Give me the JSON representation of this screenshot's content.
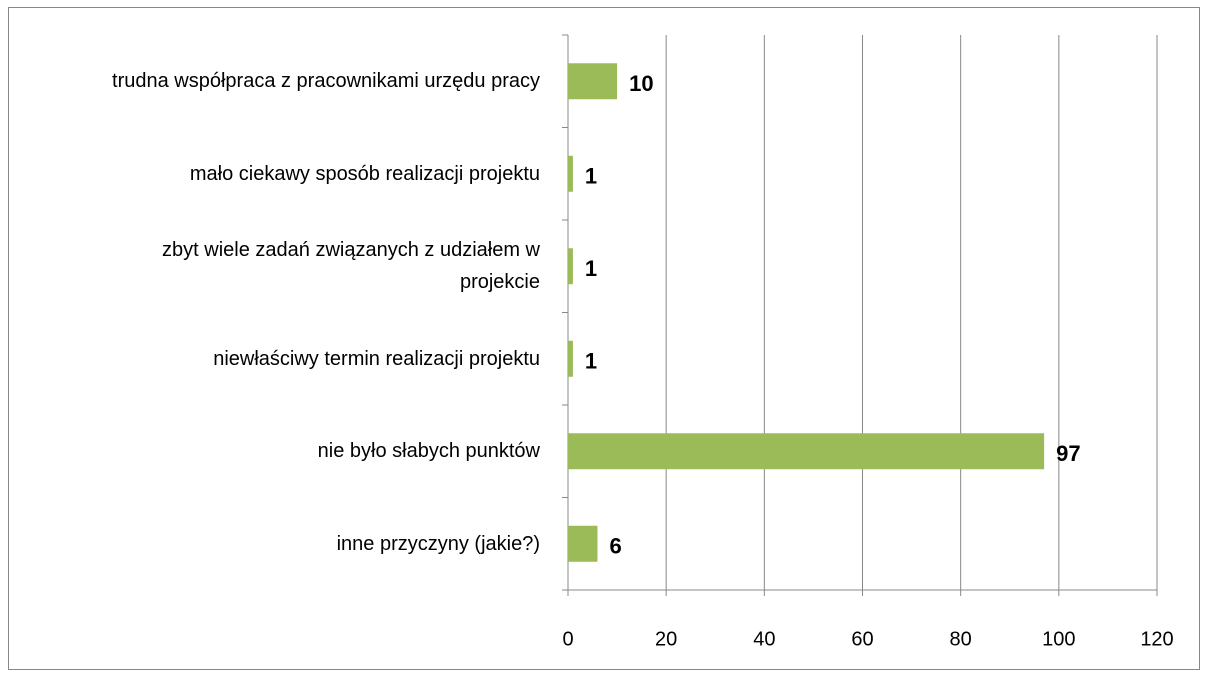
{
  "chart_data": {
    "type": "barh",
    "categories": [
      "trudna współpraca z pracownikami urzędu pracy",
      "mało ciekawy sposób realizacji projektu",
      "zbyt wiele zadań związanych z udziałem w projekcie",
      "niewłaściwy termin realizacji projektu",
      "nie było słabych punktów",
      "inne przyczyny (jakie?)"
    ],
    "values": [
      10,
      1,
      1,
      1,
      97,
      6
    ],
    "color": "#9bbb59",
    "xlim": [
      0,
      120
    ],
    "xticks": [
      0,
      20,
      40,
      60,
      80,
      100,
      120
    ],
    "grid": true
  }
}
